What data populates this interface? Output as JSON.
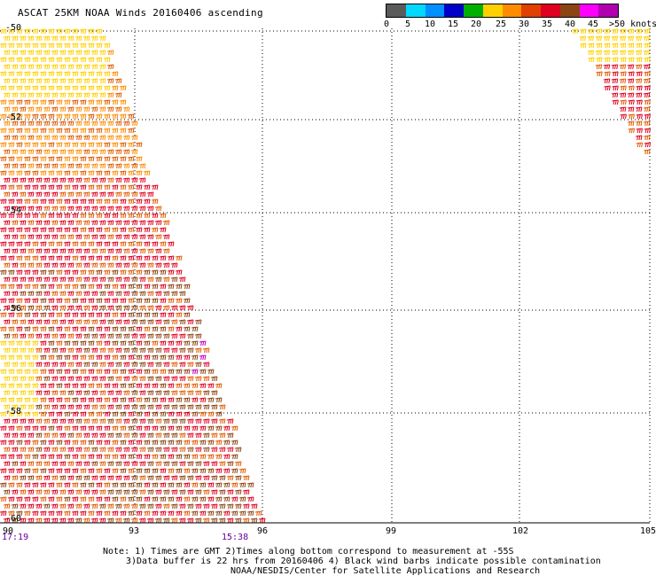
{
  "title": "ASCAT 25KM NOAA Winds 20160406 ascending",
  "legend": {
    "colors": [
      "#5a5a5a",
      "#00d8ff",
      "#0090ff",
      "#0000c8",
      "#00b000",
      "#ffd000",
      "#ff8c00",
      "#e04000",
      "#e00020",
      "#8b4513",
      "#ff00ff",
      "#b000b0"
    ],
    "labels": [
      "0",
      "5",
      "10",
      "15",
      "20",
      "25",
      "30",
      "35",
      "40",
      "45",
      ">50 knots"
    ]
  },
  "map": {
    "lat_labels": [
      "-50",
      "-52",
      "-54",
      "-56",
      "-58",
      "-60"
    ],
    "lon_labels": [
      "90",
      "93",
      "96",
      "99",
      "102",
      "105"
    ],
    "time_labels": [
      "17:19",
      "15:38"
    ],
    "barb_colors": {
      "yellow": "#ffd000",
      "orange": "#ff8c00",
      "darkorange": "#e05a00",
      "red": "#e00020",
      "brown": "#8b4513",
      "magenta": "#c000c0"
    }
  },
  "notes": {
    "line1": "Note: 1) Times are GMT 2)Times along bottom correspond to measurement at -55S",
    "line2": "3)Data buffer is 22 hrs from 20160406 4) Black wind barbs indicate possible contamination",
    "line3": "NOAA/NESDIS/Center for Satellite Applications and Research"
  }
}
